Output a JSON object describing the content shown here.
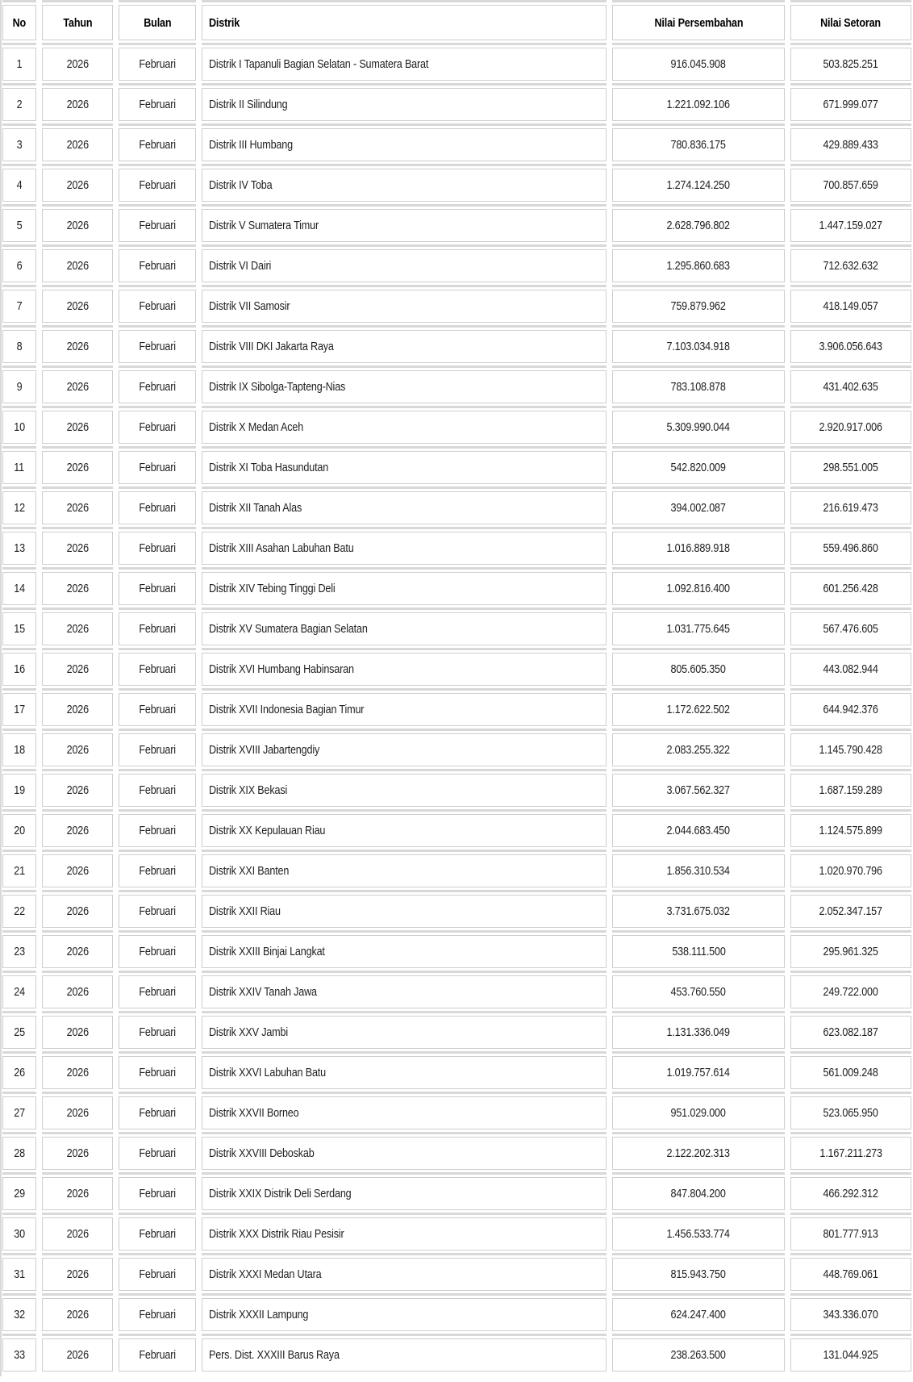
{
  "table": {
    "columns": [
      {
        "key": "no",
        "label": "No"
      },
      {
        "key": "tahun",
        "label": "Tahun"
      },
      {
        "key": "bulan",
        "label": "Bulan"
      },
      {
        "key": "distrik",
        "label": "Distrik"
      },
      {
        "key": "persembahan",
        "label": "Nilai Persembahan"
      },
      {
        "key": "setoran",
        "label": "Nilai Setoran"
      }
    ],
    "rows": [
      {
        "no": "1",
        "tahun": "2026",
        "bulan": "Februari",
        "distrik": "Distrik I Tapanuli Bagian Selatan - Sumatera Barat",
        "persembahan": "916.045.908",
        "setoran": "503.825.251"
      },
      {
        "no": "2",
        "tahun": "2026",
        "bulan": "Februari",
        "distrik": "Distrik II Silindung",
        "persembahan": "1.221.092.106",
        "setoran": "671.999.077"
      },
      {
        "no": "3",
        "tahun": "2026",
        "bulan": "Februari",
        "distrik": "Distrik III Humbang",
        "persembahan": "780.836.175",
        "setoran": "429.889.433"
      },
      {
        "no": "4",
        "tahun": "2026",
        "bulan": "Februari",
        "distrik": "Distrik IV Toba",
        "persembahan": "1.274.124.250",
        "setoran": "700.857.659"
      },
      {
        "no": "5",
        "tahun": "2026",
        "bulan": "Februari",
        "distrik": "Distrik V Sumatera Timur",
        "persembahan": "2.628.796.802",
        "setoran": "1.447.159.027"
      },
      {
        "no": "6",
        "tahun": "2026",
        "bulan": "Februari",
        "distrik": "Distrik VI Dairi",
        "persembahan": "1.295.860.683",
        "setoran": "712.632.632"
      },
      {
        "no": "7",
        "tahun": "2026",
        "bulan": "Februari",
        "distrik": "Distrik VII Samosir",
        "persembahan": "759.879.962",
        "setoran": "418.149.057"
      },
      {
        "no": "8",
        "tahun": "2026",
        "bulan": "Februari",
        "distrik": "Distrik VIII DKI Jakarta Raya",
        "persembahan": "7.103.034.918",
        "setoran": "3.906.056.643"
      },
      {
        "no": "9",
        "tahun": "2026",
        "bulan": "Februari",
        "distrik": "Distrik IX Sibolga-Tapteng-Nias",
        "persembahan": "783.108.878",
        "setoran": "431.402.635"
      },
      {
        "no": "10",
        "tahun": "2026",
        "bulan": "Februari",
        "distrik": "Distrik X Medan Aceh",
        "persembahan": "5.309.990.044",
        "setoran": "2.920.917.006"
      },
      {
        "no": "11",
        "tahun": "2026",
        "bulan": "Februari",
        "distrik": "Distrik XI Toba Hasundutan",
        "persembahan": "542.820.009",
        "setoran": "298.551.005"
      },
      {
        "no": "12",
        "tahun": "2026",
        "bulan": "Februari",
        "distrik": "Distrik XII Tanah Alas",
        "persembahan": "394.002.087",
        "setoran": "216.619.473"
      },
      {
        "no": "13",
        "tahun": "2026",
        "bulan": "Februari",
        "distrik": "Distrik XIII Asahan Labuhan Batu",
        "persembahan": "1.016.889.918",
        "setoran": "559.496.860"
      },
      {
        "no": "14",
        "tahun": "2026",
        "bulan": "Februari",
        "distrik": "Distrik XIV Tebing Tinggi Deli",
        "persembahan": "1.092.816.400",
        "setoran": "601.256.428"
      },
      {
        "no": "15",
        "tahun": "2026",
        "bulan": "Februari",
        "distrik": "Distrik XV Sumatera Bagian Selatan",
        "persembahan": "1.031.775.645",
        "setoran": "567.476.605"
      },
      {
        "no": "16",
        "tahun": "2026",
        "bulan": "Februari",
        "distrik": "Distrik XVI Humbang Habinsaran",
        "persembahan": "805.605.350",
        "setoran": "443.082.944"
      },
      {
        "no": "17",
        "tahun": "2026",
        "bulan": "Februari",
        "distrik": "Distrik XVII Indonesia Bagian Timur",
        "persembahan": "1.172.622.502",
        "setoran": "644.942.376"
      },
      {
        "no": "18",
        "tahun": "2026",
        "bulan": "Februari",
        "distrik": "Distrik XVIII Jabartengdiy",
        "persembahan": "2.083.255.322",
        "setoran": "1.145.790.428"
      },
      {
        "no": "19",
        "tahun": "2026",
        "bulan": "Februari",
        "distrik": "Distrik XIX Bekasi",
        "persembahan": "3.067.562.327",
        "setoran": "1.687.159.289"
      },
      {
        "no": "20",
        "tahun": "2026",
        "bulan": "Februari",
        "distrik": "Distrik XX Kepulauan Riau",
        "persembahan": "2.044.683.450",
        "setoran": "1.124.575.899"
      },
      {
        "no": "21",
        "tahun": "2026",
        "bulan": "Februari",
        "distrik": "Distrik XXI Banten",
        "persembahan": "1.856.310.534",
        "setoran": "1.020.970.796"
      },
      {
        "no": "22",
        "tahun": "2026",
        "bulan": "Februari",
        "distrik": "Distrik XXII Riau",
        "persembahan": "3.731.675.032",
        "setoran": "2.052.347.157"
      },
      {
        "no": "23",
        "tahun": "2026",
        "bulan": "Februari",
        "distrik": "Distrik XXIII Binjai Langkat",
        "persembahan": "538.111.500",
        "setoran": "295.961.325"
      },
      {
        "no": "24",
        "tahun": "2026",
        "bulan": "Februari",
        "distrik": "Distrik XXIV Tanah Jawa",
        "persembahan": "453.760.550",
        "setoran": "249.722.000"
      },
      {
        "no": "25",
        "tahun": "2026",
        "bulan": "Februari",
        "distrik": "Distrik XXV Jambi",
        "persembahan": "1.131.336.049",
        "setoran": "623.082.187"
      },
      {
        "no": "26",
        "tahun": "2026",
        "bulan": "Februari",
        "distrik": "Distrik XXVI Labuhan Batu",
        "persembahan": "1.019.757.614",
        "setoran": "561.009.248"
      },
      {
        "no": "27",
        "tahun": "2026",
        "bulan": "Februari",
        "distrik": "Distrik XXVII Borneo",
        "persembahan": "951.029.000",
        "setoran": "523.065.950"
      },
      {
        "no": "28",
        "tahun": "2026",
        "bulan": "Februari",
        "distrik": "Distrik XXVIII Deboskab",
        "persembahan": "2.122.202.313",
        "setoran": "1.167.211.273"
      },
      {
        "no": "29",
        "tahun": "2026",
        "bulan": "Februari",
        "distrik": "Distrik XXIX Distrik Deli Serdang",
        "persembahan": "847.804.200",
        "setoran": "466.292.312"
      },
      {
        "no": "30",
        "tahun": "2026",
        "bulan": "Februari",
        "distrik": "Distrik XXX Distrik Riau Pesisir",
        "persembahan": "1.456.533.774",
        "setoran": "801.777.913"
      },
      {
        "no": "31",
        "tahun": "2026",
        "bulan": "Februari",
        "distrik": "Distrik XXXI Medan Utara",
        "persembahan": "815.943.750",
        "setoran": "448.769.061"
      },
      {
        "no": "32",
        "tahun": "2026",
        "bulan": "Februari",
        "distrik": "Distrik XXXII Lampung",
        "persembahan": "624.247.400",
        "setoran": "343.336.070"
      },
      {
        "no": "33",
        "tahun": "2026",
        "bulan": "Februari",
        "distrik": "Pers. Dist. XXXIII Barus Raya",
        "persembahan": "238.263.500",
        "setoran": "131.044.925"
      }
    ]
  },
  "colors": {
    "cell_border": "#cecece",
    "separator_band": "#d8d8d8",
    "text": "#212121"
  }
}
